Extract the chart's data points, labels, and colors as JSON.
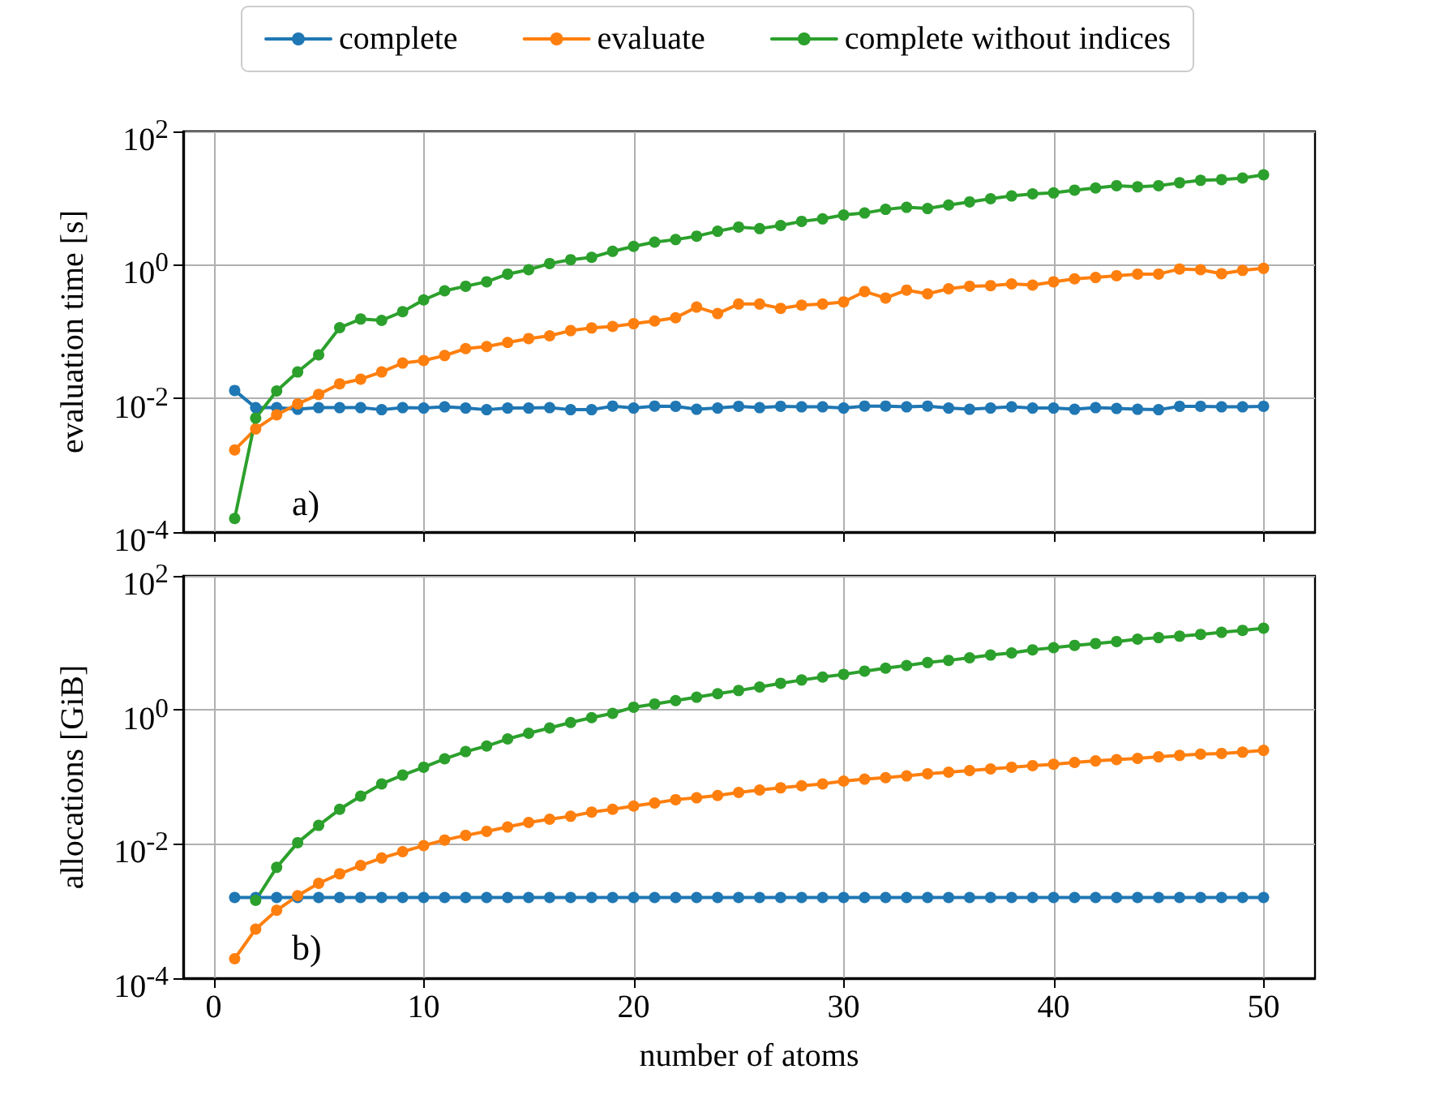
{
  "chart_data": [
    {
      "type": "line",
      "ylabel": "evaluation time [s]",
      "annotations": [
        "a)"
      ],
      "x": [
        1,
        2,
        3,
        4,
        5,
        6,
        7,
        8,
        9,
        10,
        11,
        12,
        13,
        14,
        15,
        16,
        17,
        18,
        19,
        20,
        21,
        22,
        23,
        24,
        25,
        26,
        27,
        28,
        29,
        30,
        31,
        32,
        33,
        34,
        35,
        36,
        37,
        38,
        39,
        40,
        41,
        42,
        43,
        44,
        45,
        46,
        47,
        48,
        49,
        50
      ],
      "series": [
        {
          "name": "complete",
          "color": "#1f77b4",
          "values": [
            0.0132,
            0.0073,
            0.0073,
            0.0069,
            0.0073,
            0.0073,
            0.0073,
            0.0068,
            0.0073,
            0.0072,
            0.0075,
            0.0072,
            0.0068,
            0.0072,
            0.0072,
            0.0073,
            0.0068,
            0.0068,
            0.0077,
            0.0072,
            0.0077,
            0.00765,
            0.0069,
            0.0072,
            0.00765,
            0.0073,
            0.00765,
            0.0075,
            0.0075,
            0.0072,
            0.0077,
            0.0077,
            0.0075,
            0.0077,
            0.0072,
            0.0069,
            0.0072,
            0.0075,
            0.0072,
            0.0072,
            0.0069,
            0.0073,
            0.0071,
            0.0069,
            0.0068,
            0.00765,
            0.00765,
            0.0075,
            0.0075,
            0.00765
          ]
        },
        {
          "name": "evaluate",
          "color": "#ff7f0e",
          "values": [
            0.0017,
            0.0035,
            0.0057,
            0.0083,
            0.0115,
            0.0166,
            0.0195,
            0.025,
            0.034,
            0.037,
            0.044,
            0.056,
            0.06,
            0.069,
            0.079,
            0.087,
            0.104,
            0.114,
            0.12,
            0.132,
            0.145,
            0.162,
            0.234,
            0.187,
            0.26,
            0.26,
            0.224,
            0.25,
            0.26,
            0.28,
            0.4,
            0.32,
            0.42,
            0.37,
            0.44,
            0.48,
            0.49,
            0.52,
            0.5,
            0.56,
            0.62,
            0.65,
            0.69,
            0.73,
            0.73,
            0.87,
            0.85,
            0.74,
            0.83,
            0.89
          ]
        },
        {
          "name": "complete without indices",
          "color": "#2ca02c",
          "values": [
            0.00016,
            0.0051,
            0.013,
            0.025,
            0.045,
            0.115,
            0.155,
            0.148,
            0.2,
            0.3,
            0.41,
            0.48,
            0.56,
            0.73,
            0.85,
            1.05,
            1.2,
            1.3,
            1.6,
            1.9,
            2.2,
            2.4,
            2.7,
            3.2,
            3.7,
            3.5,
            3.9,
            4.5,
            4.9,
            5.6,
            6,
            6.8,
            7.3,
            7,
            7.9,
            8.8,
            9.8,
            10.8,
            11.6,
            12,
            13.2,
            14.2,
            15.4,
            14.8,
            15.4,
            17,
            18.5,
            19,
            20,
            22.4
          ]
        }
      ],
      "xlim": [
        -1.45,
        52.45
      ],
      "xticks": [
        0,
        10,
        20,
        30,
        40,
        50
      ],
      "ylim": [
        0.0001,
        100
      ],
      "yticks": [
        {
          "value": 0.0001,
          "label": "10$^{-4}$"
        },
        {
          "value": 0.01,
          "label": "10$^{-2}$"
        },
        {
          "value": 1,
          "label": "10$^{0}$"
        },
        {
          "value": 100,
          "label": "10$^{2}$"
        }
      ],
      "log": "y",
      "grid": true,
      "legend": "top",
      "marker": "circle",
      "line_style": "solid",
      "tick_labels": "y"
    },
    {
      "type": "line",
      "xlabel": "number of atoms",
      "ylabel": "allocations [GiB]",
      "annotations": [
        "b)"
      ],
      "x": [
        1,
        2,
        3,
        4,
        5,
        6,
        7,
        8,
        9,
        10,
        11,
        12,
        13,
        14,
        15,
        16,
        17,
        18,
        19,
        20,
        21,
        22,
        23,
        24,
        25,
        26,
        27,
        28,
        29,
        30,
        31,
        32,
        33,
        34,
        35,
        36,
        37,
        38,
        39,
        40,
        41,
        42,
        43,
        44,
        45,
        46,
        47,
        48,
        49,
        50
      ],
      "series": [
        {
          "color": "#1f77b4",
          "values": [
            0.0016,
            0.0016,
            0.0016,
            0.0016,
            0.0016,
            0.0016,
            0.0016,
            0.0016,
            0.0016,
            0.0016,
            0.0016,
            0.0016,
            0.0016,
            0.0016,
            0.0016,
            0.0016,
            0.0016,
            0.0016,
            0.0016,
            0.0016,
            0.0016,
            0.0016,
            0.0016,
            0.0016,
            0.0016,
            0.0016,
            0.0016,
            0.0016,
            0.0016,
            0.0016,
            0.0016,
            0.0016,
            0.0016,
            0.0016,
            0.0016,
            0.0016,
            0.0016,
            0.0016,
            0.0016,
            0.0016,
            0.0016,
            0.0016,
            0.0016,
            0.0016,
            0.0016,
            0.0016,
            0.0016,
            0.0016,
            0.0016,
            0.0016
          ]
        },
        {
          "color": "#ff7f0e",
          "values": [
            0.000195,
            0.00054,
            0.00103,
            0.0017,
            0.0026,
            0.0036,
            0.0048,
            0.0062,
            0.0077,
            0.0095,
            0.0115,
            0.0135,
            0.0155,
            0.018,
            0.021,
            0.0235,
            0.026,
            0.03,
            0.033,
            0.037,
            0.041,
            0.046,
            0.049,
            0.053,
            0.059,
            0.064,
            0.069,
            0.074,
            0.079,
            0.087,
            0.093,
            0.098,
            0.104,
            0.112,
            0.118,
            0.125,
            0.132,
            0.14,
            0.148,
            0.155,
            0.165,
            0.174,
            0.182,
            0.19,
            0.2,
            0.21,
            0.22,
            0.225,
            0.235,
            0.25
          ]
        },
        {
          "color": "#2ca02c",
          "values": [
            null,
            0.00145,
            0.0045,
            0.0105,
            0.019,
            0.033,
            0.052,
            0.079,
            0.107,
            0.14,
            0.187,
            0.24,
            0.29,
            0.37,
            0.45,
            0.54,
            0.65,
            0.77,
            0.89,
            1.1,
            1.23,
            1.38,
            1.55,
            1.75,
            1.95,
            2.2,
            2.5,
            2.8,
            3.1,
            3.4,
            3.8,
            4.2,
            4.6,
            5.1,
            5.5,
            6,
            6.6,
            7.1,
            7.9,
            8.5,
            9.2,
            9.8,
            10.5,
            11.4,
            12,
            12.6,
            13.4,
            14.4,
            15.4,
            16.6
          ]
        }
      ],
      "xlim": [
        -1.45,
        52.45
      ],
      "xticks": [
        0,
        10,
        20,
        30,
        40,
        50
      ],
      "ylim": [
        0.0001,
        100
      ],
      "yticks": [
        {
          "value": 0.0001,
          "label": "10$^{-4}$"
        },
        {
          "value": 0.01,
          "label": "10$^{-2}$"
        },
        {
          "value": 1,
          "label": "10$^{0}$"
        },
        {
          "value": 100,
          "label": "10$^{2}$"
        }
      ],
      "log": "y",
      "grid": true,
      "legend": false,
      "marker": "circle",
      "line_style": "solid"
    }
  ]
}
